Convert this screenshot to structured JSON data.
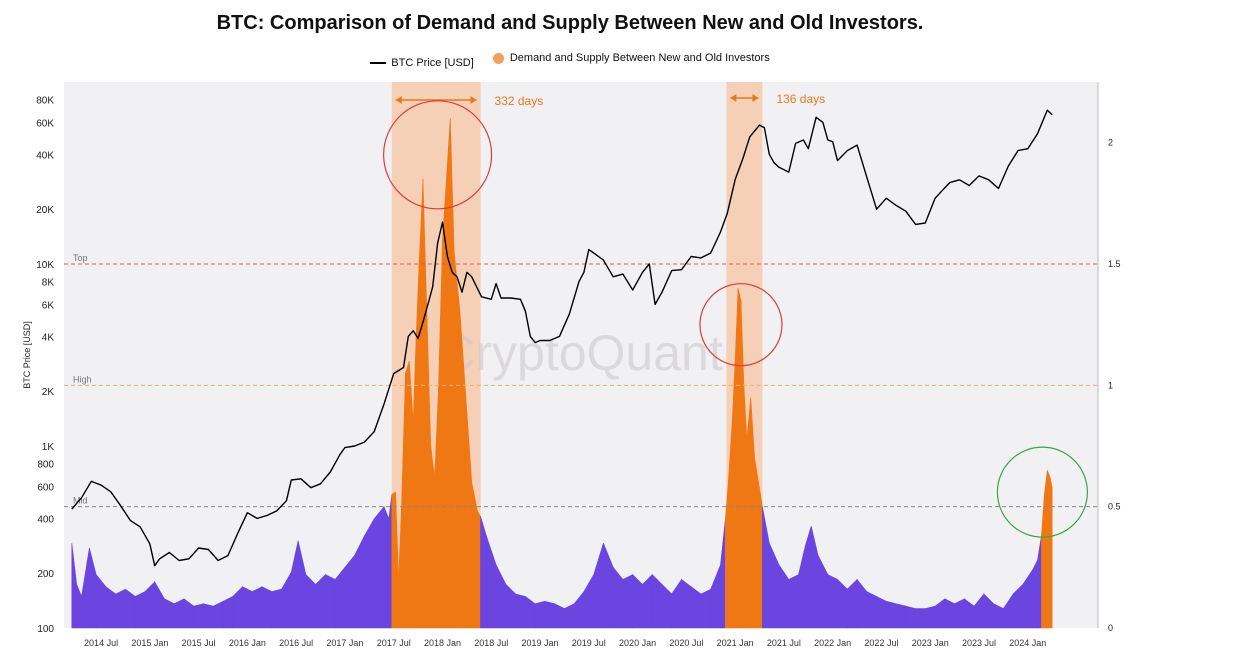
{
  "chart_data": {
    "type": "area",
    "title": "BTC: Comparison of Demand and Supply Between New and Old Investors.",
    "watermark": "CryptoQuant",
    "ylabel": "BTC Price [USD]",
    "y_scale_left": "log",
    "ylim_left": [
      100,
      100000
    ],
    "ylim_right": [
      0,
      2.25
    ],
    "left_ticks": [
      {
        "v": 100,
        "label": "100"
      },
      {
        "v": 200,
        "label": "200"
      },
      {
        "v": 400,
        "label": "400"
      },
      {
        "v": 600,
        "label": "600"
      },
      {
        "v": 800,
        "label": "800"
      },
      {
        "v": 1000,
        "label": "1K"
      },
      {
        "v": 2000,
        "label": "2K"
      },
      {
        "v": 4000,
        "label": "4K"
      },
      {
        "v": 6000,
        "label": "6K"
      },
      {
        "v": 8000,
        "label": "8K"
      },
      {
        "v": 10000,
        "label": "10K"
      },
      {
        "v": 20000,
        "label": "20K"
      },
      {
        "v": 40000,
        "label": "40K"
      },
      {
        "v": 60000,
        "label": "60K"
      },
      {
        "v": 80000,
        "label": "80K"
      }
    ],
    "right_ticks": [
      {
        "v": 0,
        "label": "0"
      },
      {
        "v": 0.5,
        "label": "0.5"
      },
      {
        "v": 1,
        "label": "1"
      },
      {
        "v": 1.5,
        "label": "1.5"
      },
      {
        "v": 2,
        "label": "2"
      }
    ],
    "x_ticks": [
      {
        "t": 2014.5,
        "label": "2014 Jul"
      },
      {
        "t": 2015.0,
        "label": "2015 Jan"
      },
      {
        "t": 2015.5,
        "label": "2015 Jul"
      },
      {
        "t": 2016.0,
        "label": "2016 Jan"
      },
      {
        "t": 2016.5,
        "label": "2016 Jul"
      },
      {
        "t": 2017.0,
        "label": "2017 Jan"
      },
      {
        "t": 2017.5,
        "label": "2017 Jul"
      },
      {
        "t": 2018.0,
        "label": "2018 Jan"
      },
      {
        "t": 2018.5,
        "label": "2018 Jul"
      },
      {
        "t": 2019.0,
        "label": "2019 Jan"
      },
      {
        "t": 2019.5,
        "label": "2019 Jul"
      },
      {
        "t": 2020.0,
        "label": "2020 Jan"
      },
      {
        "t": 2020.5,
        "label": "2020 Jul"
      },
      {
        "t": 2021.0,
        "label": "2021 Jan"
      },
      {
        "t": 2021.5,
        "label": "2021 Jul"
      },
      {
        "t": 2022.0,
        "label": "2022 Jan"
      },
      {
        "t": 2022.5,
        "label": "2022 Jul"
      },
      {
        "t": 2023.0,
        "label": "2023 Jan"
      },
      {
        "t": 2023.5,
        "label": "2023 Jul"
      },
      {
        "t": 2024.0,
        "label": "2024 Jan"
      }
    ],
    "x_range": [
      2014.12,
      2024.72
    ],
    "threshold_lines": [
      {
        "label": "Top",
        "value": 1.5,
        "color": "#e05a5a"
      },
      {
        "label": "High",
        "value": 1.0,
        "color": "#f0b060"
      },
      {
        "label": "Mid",
        "value": 0.5,
        "color": "#888888"
      }
    ],
    "shaded_periods": [
      {
        "start": 2017.48,
        "end": 2018.39,
        "label": "332 days"
      },
      {
        "start": 2020.91,
        "end": 2021.28,
        "label": "136 days"
      }
    ],
    "series": [
      {
        "name": "BTC Price [USD]",
        "color": "#000000",
        "points": [
          [
            2014.2,
            450
          ],
          [
            2014.3,
            520
          ],
          [
            2014.4,
            640
          ],
          [
            2014.5,
            610
          ],
          [
            2014.6,
            560
          ],
          [
            2014.7,
            470
          ],
          [
            2014.8,
            390
          ],
          [
            2014.9,
            360
          ],
          [
            2015.0,
            290
          ],
          [
            2015.05,
            220
          ],
          [
            2015.1,
            240
          ],
          [
            2015.2,
            260
          ],
          [
            2015.3,
            235
          ],
          [
            2015.4,
            240
          ],
          [
            2015.5,
            275
          ],
          [
            2015.6,
            270
          ],
          [
            2015.7,
            235
          ],
          [
            2015.8,
            250
          ],
          [
            2015.9,
            330
          ],
          [
            2016.0,
            430
          ],
          [
            2016.1,
            400
          ],
          [
            2016.2,
            415
          ],
          [
            2016.3,
            440
          ],
          [
            2016.4,
            500
          ],
          [
            2016.45,
            650
          ],
          [
            2016.55,
            660
          ],
          [
            2016.65,
            590
          ],
          [
            2016.75,
            620
          ],
          [
            2016.85,
            720
          ],
          [
            2016.95,
            900
          ],
          [
            2017.0,
            980
          ],
          [
            2017.1,
            1000
          ],
          [
            2017.2,
            1050
          ],
          [
            2017.3,
            1200
          ],
          [
            2017.4,
            1700
          ],
          [
            2017.5,
            2500
          ],
          [
            2017.6,
            2700
          ],
          [
            2017.65,
            4000
          ],
          [
            2017.7,
            4300
          ],
          [
            2017.75,
            3900
          ],
          [
            2017.8,
            4800
          ],
          [
            2017.85,
            6000
          ],
          [
            2017.9,
            7500
          ],
          [
            2017.95,
            13000
          ],
          [
            2018.0,
            17000
          ],
          [
            2018.05,
            11000
          ],
          [
            2018.1,
            9000
          ],
          [
            2018.15,
            8500
          ],
          [
            2018.2,
            7000
          ],
          [
            2018.25,
            9000
          ],
          [
            2018.3,
            8500
          ],
          [
            2018.4,
            6600
          ],
          [
            2018.5,
            6400
          ],
          [
            2018.55,
            7800
          ],
          [
            2018.6,
            6500
          ],
          [
            2018.7,
            6500
          ],
          [
            2018.8,
            6400
          ],
          [
            2018.85,
            5500
          ],
          [
            2018.9,
            4000
          ],
          [
            2018.95,
            3700
          ],
          [
            2019.0,
            3800
          ],
          [
            2019.1,
            3800
          ],
          [
            2019.2,
            4000
          ],
          [
            2019.3,
            5300
          ],
          [
            2019.4,
            8000
          ],
          [
            2019.45,
            9000
          ],
          [
            2019.5,
            12000
          ],
          [
            2019.55,
            11500
          ],
          [
            2019.65,
            10500
          ],
          [
            2019.75,
            8500
          ],
          [
            2019.85,
            8800
          ],
          [
            2019.95,
            7200
          ],
          [
            2020.05,
            9000
          ],
          [
            2020.12,
            10000
          ],
          [
            2020.18,
            6000
          ],
          [
            2020.25,
            7000
          ],
          [
            2020.35,
            9200
          ],
          [
            2020.45,
            9300
          ],
          [
            2020.55,
            11000
          ],
          [
            2020.65,
            10800
          ],
          [
            2020.75,
            11500
          ],
          [
            2020.85,
            15000
          ],
          [
            2020.92,
            19000
          ],
          [
            2021.0,
            29000
          ],
          [
            2021.08,
            38000
          ],
          [
            2021.15,
            50000
          ],
          [
            2021.25,
            58000
          ],
          [
            2021.3,
            56000
          ],
          [
            2021.35,
            40000
          ],
          [
            2021.4,
            36000
          ],
          [
            2021.45,
            34000
          ],
          [
            2021.55,
            32000
          ],
          [
            2021.62,
            46000
          ],
          [
            2021.7,
            48000
          ],
          [
            2021.75,
            43000
          ],
          [
            2021.83,
            64000
          ],
          [
            2021.9,
            60000
          ],
          [
            2021.95,
            48000
          ],
          [
            2022.0,
            47000
          ],
          [
            2022.05,
            37000
          ],
          [
            2022.15,
            42000
          ],
          [
            2022.25,
            45000
          ],
          [
            2022.35,
            30000
          ],
          [
            2022.45,
            20000
          ],
          [
            2022.55,
            23000
          ],
          [
            2022.65,
            21000
          ],
          [
            2022.75,
            19500
          ],
          [
            2022.85,
            16500
          ],
          [
            2022.95,
            16800
          ],
          [
            2023.05,
            23000
          ],
          [
            2023.2,
            28000
          ],
          [
            2023.3,
            29000
          ],
          [
            2023.4,
            27000
          ],
          [
            2023.5,
            30500
          ],
          [
            2023.6,
            29000
          ],
          [
            2023.7,
            26000
          ],
          [
            2023.8,
            34500
          ],
          [
            2023.9,
            42000
          ],
          [
            2024.0,
            43000
          ],
          [
            2024.1,
            52000
          ],
          [
            2024.2,
            70000
          ],
          [
            2024.25,
            66000
          ]
        ]
      },
      {
        "name": "Demand and Supply Between New and Old Investors",
        "color": "#f07814",
        "low_color": "#6a45e0",
        "points": [
          [
            2014.2,
            0.35
          ],
          [
            2014.25,
            0.18
          ],
          [
            2014.3,
            0.13
          ],
          [
            2014.38,
            0.33
          ],
          [
            2014.45,
            0.22
          ],
          [
            2014.55,
            0.17
          ],
          [
            2014.65,
            0.14
          ],
          [
            2014.75,
            0.16
          ],
          [
            2014.85,
            0.13
          ],
          [
            2014.95,
            0.15
          ],
          [
            2015.05,
            0.19
          ],
          [
            2015.15,
            0.12
          ],
          [
            2015.25,
            0.1
          ],
          [
            2015.35,
            0.12
          ],
          [
            2015.45,
            0.09
          ],
          [
            2015.55,
            0.1
          ],
          [
            2015.65,
            0.09
          ],
          [
            2015.75,
            0.11
          ],
          [
            2015.85,
            0.13
          ],
          [
            2015.95,
            0.17
          ],
          [
            2016.05,
            0.15
          ],
          [
            2016.15,
            0.17
          ],
          [
            2016.25,
            0.15
          ],
          [
            2016.35,
            0.16
          ],
          [
            2016.45,
            0.23
          ],
          [
            2016.52,
            0.36
          ],
          [
            2016.6,
            0.22
          ],
          [
            2016.7,
            0.18
          ],
          [
            2016.8,
            0.22
          ],
          [
            2016.9,
            0.2
          ],
          [
            2017.0,
            0.25
          ],
          [
            2017.1,
            0.3
          ],
          [
            2017.2,
            0.38
          ],
          [
            2017.3,
            0.45
          ],
          [
            2017.4,
            0.5
          ],
          [
            2017.45,
            0.45
          ],
          [
            2017.48,
            0.55
          ],
          [
            2017.52,
            0.56
          ],
          [
            2017.55,
            0.2
          ],
          [
            2017.58,
            0.5
          ],
          [
            2017.62,
            1.05
          ],
          [
            2017.66,
            1.1
          ],
          [
            2017.7,
            0.85
          ],
          [
            2017.73,
            1.2
          ],
          [
            2017.76,
            1.5
          ],
          [
            2017.8,
            1.85
          ],
          [
            2017.84,
            1.3
          ],
          [
            2017.88,
            0.75
          ],
          [
            2017.92,
            0.62
          ],
          [
            2017.96,
            1.0
          ],
          [
            2018.0,
            1.6
          ],
          [
            2018.04,
            1.85
          ],
          [
            2018.08,
            2.1
          ],
          [
            2018.12,
            1.55
          ],
          [
            2018.18,
            1.3
          ],
          [
            2018.24,
            0.95
          ],
          [
            2018.3,
            0.6
          ],
          [
            2018.36,
            0.48
          ],
          [
            2018.39,
            0.46
          ],
          [
            2018.45,
            0.38
          ],
          [
            2018.55,
            0.26
          ],
          [
            2018.65,
            0.18
          ],
          [
            2018.75,
            0.14
          ],
          [
            2018.85,
            0.13
          ],
          [
            2018.95,
            0.1
          ],
          [
            2019.05,
            0.11
          ],
          [
            2019.15,
            0.1
          ],
          [
            2019.25,
            0.08
          ],
          [
            2019.35,
            0.1
          ],
          [
            2019.45,
            0.15
          ],
          [
            2019.55,
            0.22
          ],
          [
            2019.65,
            0.35
          ],
          [
            2019.75,
            0.25
          ],
          [
            2019.85,
            0.2
          ],
          [
            2019.95,
            0.22
          ],
          [
            2020.05,
            0.18
          ],
          [
            2020.15,
            0.22
          ],
          [
            2020.25,
            0.18
          ],
          [
            2020.35,
            0.14
          ],
          [
            2020.45,
            0.2
          ],
          [
            2020.55,
            0.17
          ],
          [
            2020.65,
            0.14
          ],
          [
            2020.75,
            0.16
          ],
          [
            2020.85,
            0.26
          ],
          [
            2020.9,
            0.45
          ],
          [
            2020.93,
            0.6
          ],
          [
            2020.97,
            0.85
          ],
          [
            2021.0,
            1.1
          ],
          [
            2021.03,
            1.4
          ],
          [
            2021.06,
            1.35
          ],
          [
            2021.09,
            1.0
          ],
          [
            2021.12,
            0.78
          ],
          [
            2021.16,
            0.95
          ],
          [
            2021.2,
            0.7
          ],
          [
            2021.24,
            0.6
          ],
          [
            2021.28,
            0.5
          ],
          [
            2021.35,
            0.35
          ],
          [
            2021.45,
            0.26
          ],
          [
            2021.55,
            0.2
          ],
          [
            2021.65,
            0.22
          ],
          [
            2021.72,
            0.34
          ],
          [
            2021.78,
            0.42
          ],
          [
            2021.85,
            0.3
          ],
          [
            2021.95,
            0.22
          ],
          [
            2022.05,
            0.2
          ],
          [
            2022.15,
            0.16
          ],
          [
            2022.25,
            0.2
          ],
          [
            2022.35,
            0.15
          ],
          [
            2022.45,
            0.13
          ],
          [
            2022.55,
            0.11
          ],
          [
            2022.65,
            0.1
          ],
          [
            2022.75,
            0.09
          ],
          [
            2022.85,
            0.08
          ],
          [
            2022.95,
            0.08
          ],
          [
            2023.05,
            0.09
          ],
          [
            2023.15,
            0.12
          ],
          [
            2023.25,
            0.1
          ],
          [
            2023.35,
            0.12
          ],
          [
            2023.45,
            0.09
          ],
          [
            2023.55,
            0.14
          ],
          [
            2023.65,
            0.1
          ],
          [
            2023.75,
            0.08
          ],
          [
            2023.85,
            0.14
          ],
          [
            2023.95,
            0.18
          ],
          [
            2024.05,
            0.24
          ],
          [
            2024.1,
            0.28
          ],
          [
            2024.14,
            0.38
          ],
          [
            2024.17,
            0.55
          ],
          [
            2024.2,
            0.65
          ],
          [
            2024.23,
            0.62
          ],
          [
            2024.25,
            0.58
          ]
        ]
      }
    ],
    "annotations": [
      {
        "type": "circle",
        "color": "#e03a3a",
        "t": 2017.95,
        "v": 1.95
      },
      {
        "type": "circle",
        "color": "#e03a3a",
        "t": 2021.06,
        "v": 1.25
      },
      {
        "type": "circle",
        "color": "#3aa83a",
        "t": 2024.15,
        "v": 0.56
      }
    ]
  }
}
